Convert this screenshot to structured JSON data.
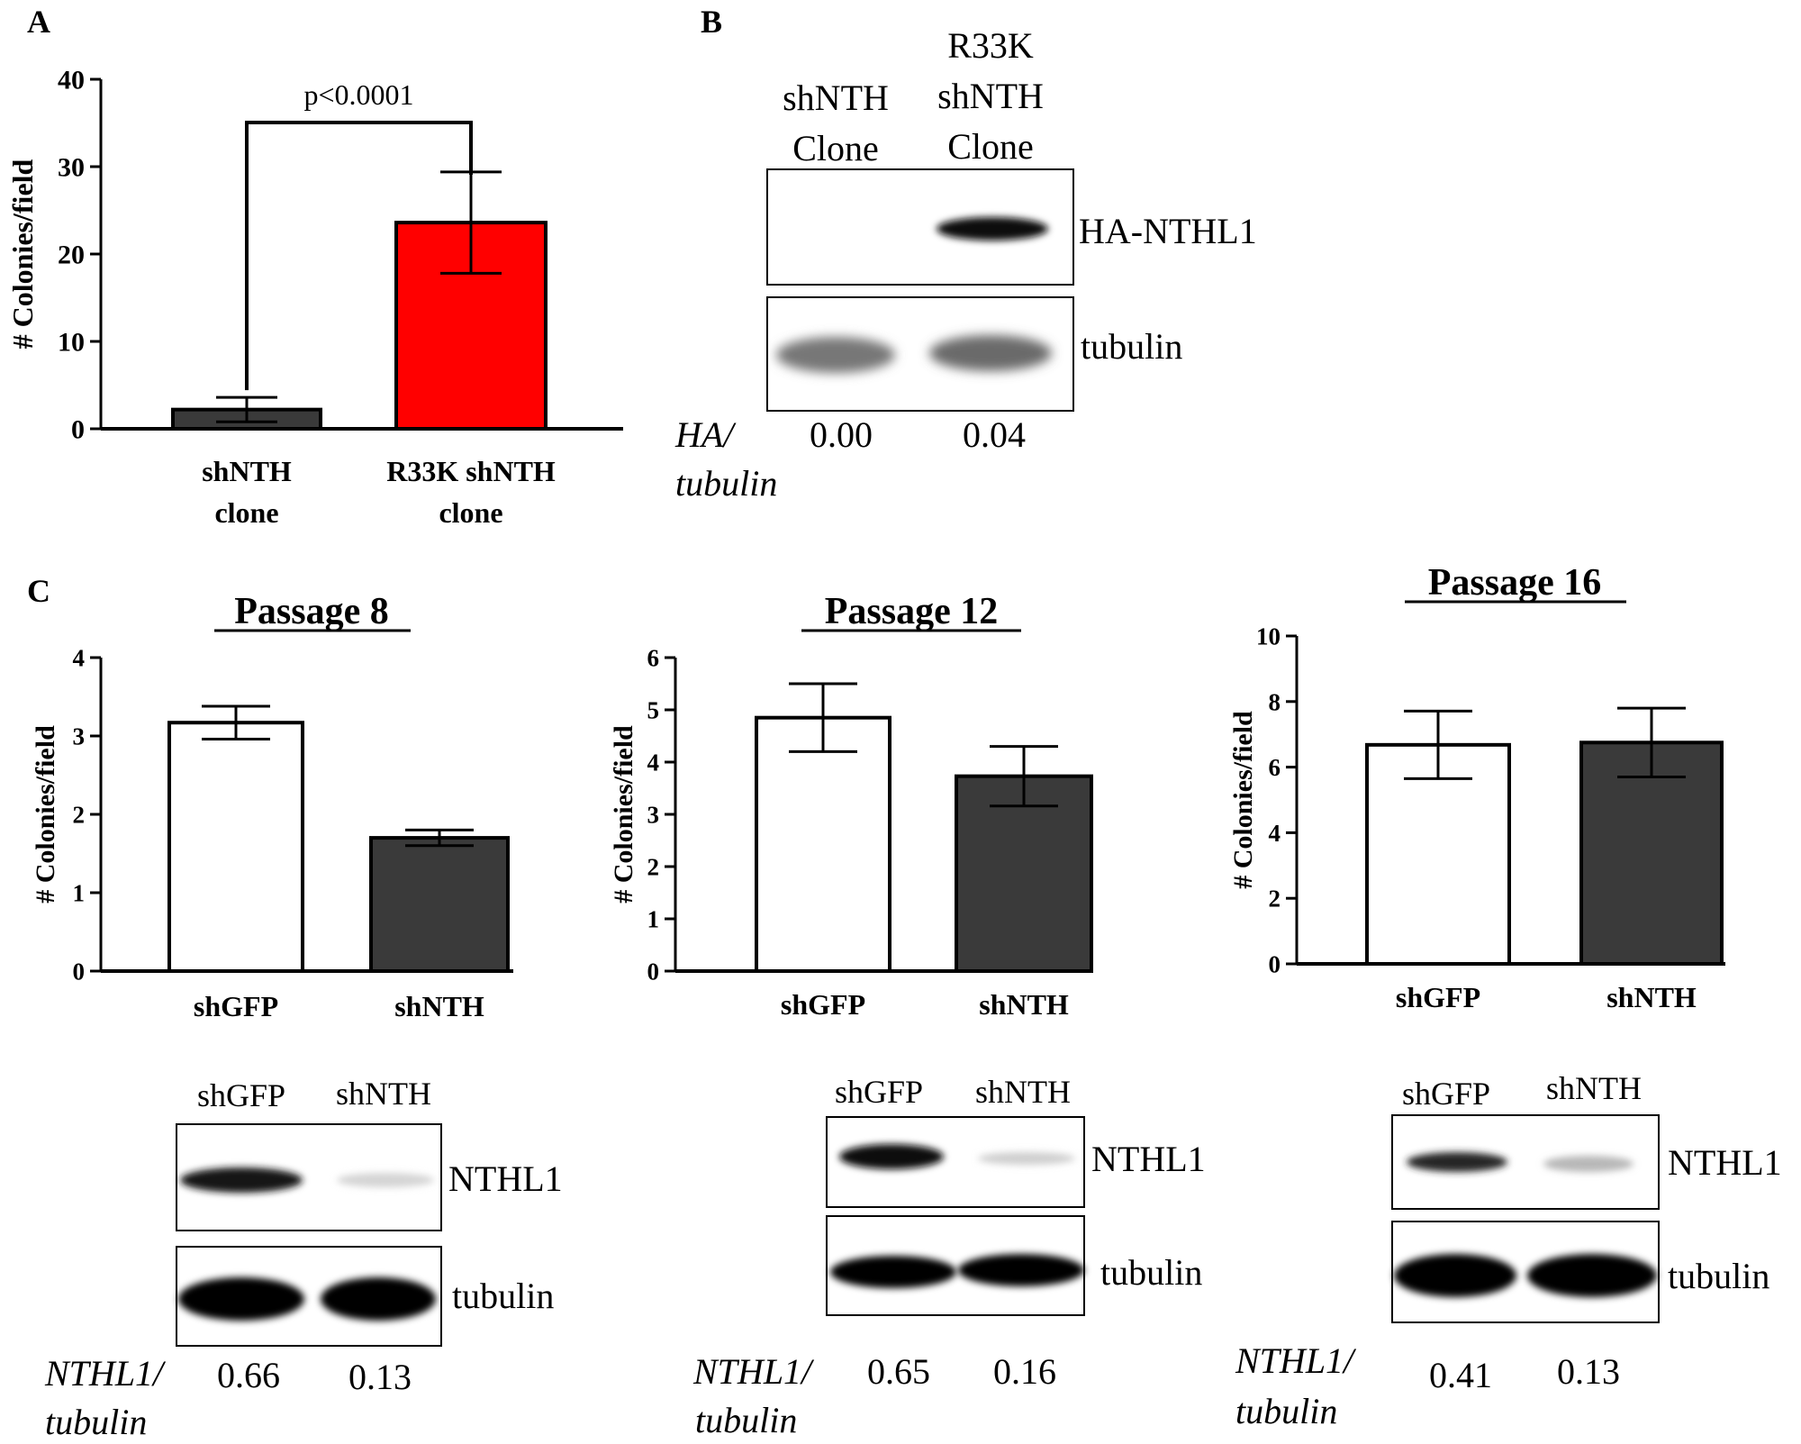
{
  "chart_data": [
    {
      "panel": "A",
      "type": "bar",
      "title": "",
      "ylabel": "# Colonies/field",
      "xlabel": "",
      "ylim": [
        0,
        40
      ],
      "yticks": [
        0,
        10,
        20,
        30,
        40
      ],
      "categories": [
        [
          "shNTH",
          "clone"
        ],
        [
          "R33K shNTH",
          "clone"
        ]
      ],
      "values": [
        2.2,
        23.6
      ],
      "errors": [
        1.4,
        5.8
      ],
      "bar_colors": [
        "#3a3a3a",
        "#ff0000"
      ],
      "annotation": "p<0.0001",
      "grid": false
    },
    {
      "panel": "C",
      "type": "bar",
      "title": "Passage 8",
      "ylabel": "# Colonies/field",
      "xlabel": "",
      "ylim": [
        0,
        4
      ],
      "yticks": [
        0,
        1,
        2,
        3,
        4
      ],
      "categories": [
        [
          "shGFP"
        ],
        [
          "shNTH"
        ]
      ],
      "values": [
        3.17,
        1.7
      ],
      "errors": [
        0.21,
        0.1
      ],
      "bar_colors": [
        "#ffffff",
        "#3a3a3a"
      ],
      "grid": false
    },
    {
      "panel": "C",
      "type": "bar",
      "title": "Passage 12",
      "ylabel": "# Colonies/field",
      "xlabel": "",
      "ylim": [
        0,
        6
      ],
      "yticks": [
        0,
        1,
        2,
        3,
        4,
        5,
        6
      ],
      "categories": [
        [
          "shGFP"
        ],
        [
          "shNTH"
        ]
      ],
      "values": [
        4.85,
        3.73
      ],
      "errors": [
        0.65,
        0.57
      ],
      "bar_colors": [
        "#ffffff",
        "#3a3a3a"
      ],
      "grid": false
    },
    {
      "panel": "C",
      "type": "bar",
      "title": "Passage 16",
      "ylabel": "# Colonies/field",
      "xlabel": "",
      "ylim": [
        0,
        10
      ],
      "yticks": [
        0,
        2,
        4,
        6,
        8,
        10
      ],
      "categories": [
        [
          "shGFP"
        ],
        [
          "shNTH"
        ]
      ],
      "values": [
        6.68,
        6.75
      ],
      "errors": [
        1.03,
        1.05
      ],
      "bar_colors": [
        "#ffffff",
        "#3a3a3a"
      ],
      "grid": false
    }
  ],
  "panel_letters": [
    "A",
    "B",
    "C"
  ],
  "blots": [
    {
      "panel": "B",
      "lanes": [
        [
          "shNTH",
          "Clone"
        ],
        [
          "R33K",
          "shNTH",
          "Clone"
        ]
      ],
      "bands": [
        "HA-NTHL1",
        "tubulin"
      ],
      "ratio_label": [
        "HA/",
        "tubulin"
      ],
      "ratios": [
        "0.00",
        "0.04"
      ]
    },
    {
      "panel": "C",
      "passage": "Passage 8",
      "lanes": [
        [
          "shGFP"
        ],
        [
          "shNTH"
        ]
      ],
      "bands": [
        "NTHL1",
        "tubulin"
      ],
      "ratio_label": [
        "NTHL1/",
        "tubulin"
      ],
      "ratios": [
        "0.66",
        "0.13"
      ]
    },
    {
      "panel": "C",
      "passage": "Passage 12",
      "lanes": [
        [
          "shGFP"
        ],
        [
          "shNTH"
        ]
      ],
      "bands": [
        "NTHL1",
        "tubulin"
      ],
      "ratio_label": [
        "NTHL1/",
        "tubulin"
      ],
      "ratios": [
        "0.65",
        "0.16"
      ]
    },
    {
      "panel": "C",
      "passage": "Passage 16",
      "lanes": [
        [
          "shGFP"
        ],
        [
          "shNTH"
        ]
      ],
      "bands": [
        "NTHL1",
        "tubulin"
      ],
      "ratio_label": [
        "NTHL1/",
        "tubulin"
      ],
      "ratios": [
        "0.41",
        "0.13"
      ]
    }
  ]
}
